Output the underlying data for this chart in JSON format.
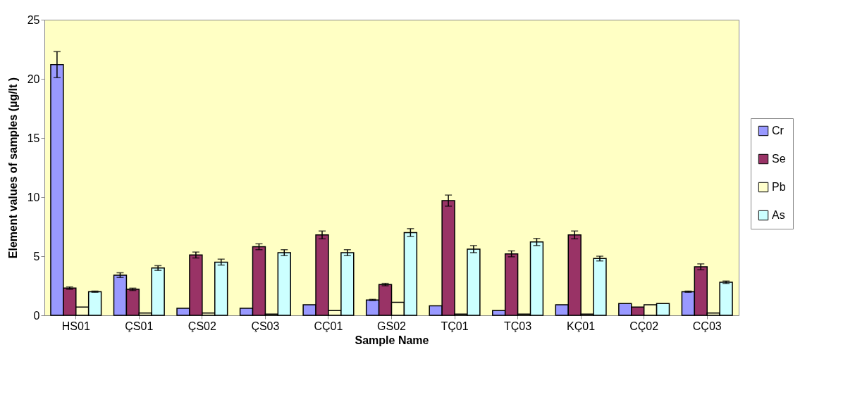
{
  "chart_data": {
    "type": "bar",
    "xlabel": "Sample Name",
    "ylabel": "Element values of samples (µg/lt )",
    "categories": [
      "HS01",
      "ÇS01",
      "ÇS02",
      "ÇS03",
      "CÇ01",
      "GS02",
      "TÇ01",
      "TÇ03",
      "KÇ01",
      "CÇ02",
      "CÇ03"
    ],
    "series": [
      {
        "name": "Cr",
        "color": "#9999ff",
        "values": [
          21.2,
          3.4,
          0.6,
          0.6,
          0.9,
          1.3,
          0.8,
          0.4,
          0.9,
          1.0,
          2.0
        ],
        "errors": [
          1.1,
          0.2,
          null,
          null,
          null,
          0.05,
          null,
          null,
          null,
          null,
          0.05
        ]
      },
      {
        "name": "Se",
        "color": "#993366",
        "values": [
          2.3,
          2.2,
          5.1,
          5.8,
          6.8,
          2.6,
          9.7,
          5.2,
          6.8,
          0.7,
          4.1
        ],
        "errors": [
          0.1,
          0.1,
          0.25,
          0.25,
          0.33,
          0.1,
          0.47,
          0.25,
          0.33,
          null,
          0.25
        ]
      },
      {
        "name": "Pb",
        "color": "#ffffcc",
        "values": [
          0.7,
          0.2,
          0.2,
          0.1,
          0.4,
          1.1,
          0.1,
          0.1,
          0.1,
          0.9,
          0.2
        ]
      },
      {
        "name": "As",
        "color": "#ccffff",
        "values": [
          2.0,
          4.0,
          4.5,
          5.3,
          5.3,
          7.0,
          5.6,
          6.2,
          4.8,
          1.0,
          2.8
        ],
        "errors": [
          0.05,
          0.2,
          0.25,
          0.25,
          0.25,
          0.33,
          0.3,
          0.3,
          0.2,
          null,
          0.1
        ]
      }
    ],
    "ylim": [
      0,
      25
    ],
    "yticks": [
      0,
      5,
      10,
      15,
      20,
      25
    ],
    "grid": false,
    "legend": "right"
  }
}
